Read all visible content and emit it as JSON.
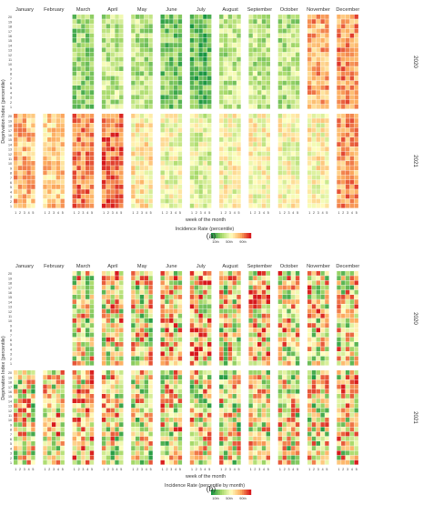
{
  "chart_data": [
    {
      "type": "heatmap",
      "panel_label": "(a)",
      "months": [
        "January",
        "February",
        "March",
        "April",
        "May",
        "June",
        "July",
        "August",
        "September",
        "October",
        "November",
        "December"
      ],
      "years": [
        "2020",
        "2021"
      ],
      "weeks": [
        "1",
        "2",
        "3",
        "4",
        "5"
      ],
      "ylabel": "Deprivation Index (percentile)",
      "yticks": [
        "20",
        "19",
        "18",
        "17",
        "16",
        "15",
        "14",
        "13",
        "12",
        "11",
        "10",
        "9",
        "8",
        "7",
        "6",
        "5",
        "4",
        "3",
        "2",
        "1"
      ],
      "xlabel": "week of the month",
      "legend_title": "Incidence Rate (percentile)",
      "legend_ticks": [
        "10th",
        "50th",
        "90th"
      ],
      "color_scale": [
        "#1a9641",
        "#a6d96a",
        "#ffffbf",
        "#fdae61",
        "#d7191c"
      ],
      "months_with_data": {
        "2020": [
          false,
          false,
          true,
          true,
          true,
          true,
          true,
          true,
          true,
          true,
          true,
          true
        ],
        "2021": [
          true,
          true,
          true,
          true,
          true,
          true,
          true,
          true,
          true,
          true,
          true,
          true
        ]
      },
      "month_level": {
        "2020": [
          0,
          0,
          0.24,
          0.33,
          0.32,
          0.2,
          0.15,
          0.33,
          0.33,
          0.32,
          0.72,
          0.78
        ],
        "2021": [
          0.68,
          0.64,
          0.8,
          0.86,
          0.55,
          0.46,
          0.42,
          0.49,
          0.5,
          0.49,
          0.52,
          0.76
        ]
      }
    },
    {
      "type": "heatmap",
      "panel_label": "(b)",
      "months": [
        "January",
        "February",
        "March",
        "April",
        "May",
        "June",
        "July",
        "August",
        "September",
        "October",
        "November",
        "December"
      ],
      "years": [
        "2020",
        "2021"
      ],
      "weeks": [
        "1",
        "2",
        "3",
        "4",
        "5"
      ],
      "ylabel": "Deprivation Index (percentile)",
      "yticks": [
        "20",
        "19",
        "18",
        "17",
        "16",
        "15",
        "14",
        "13",
        "12",
        "11",
        "10",
        "9",
        "8",
        "7",
        "6",
        "5",
        "4",
        "3",
        "2",
        "1"
      ],
      "xlabel": "week of the month",
      "legend_title": "Incidence Rate (percentile by month)",
      "legend_ticks": [
        "10th",
        "50th",
        "90th"
      ],
      "color_scale": [
        "#1a9641",
        "#a6d96a",
        "#ffffbf",
        "#fdae61",
        "#d7191c"
      ],
      "months_with_data": {
        "2020": [
          false,
          false,
          true,
          true,
          true,
          true,
          true,
          true,
          true,
          true,
          true,
          true
        ],
        "2021": [
          true,
          true,
          true,
          true,
          true,
          true,
          true,
          true,
          true,
          true,
          true,
          true
        ]
      },
      "month_level": {
        "2020": [
          0,
          0,
          0.5,
          0.55,
          0.5,
          0.55,
          0.6,
          0.5,
          0.58,
          0.55,
          0.55,
          0.52
        ],
        "2021": [
          0.5,
          0.55,
          0.55,
          0.5,
          0.5,
          0.52,
          0.5,
          0.48,
          0.5,
          0.5,
          0.48,
          0.55
        ]
      }
    }
  ]
}
